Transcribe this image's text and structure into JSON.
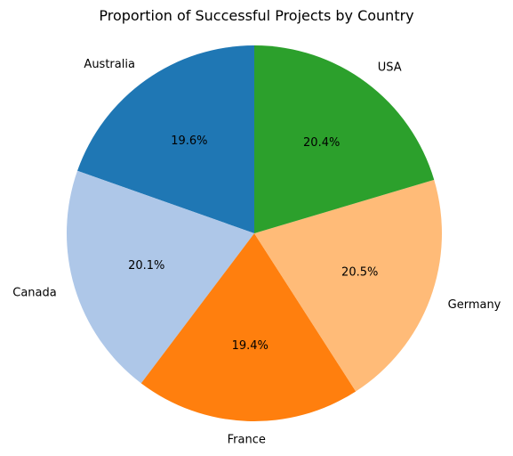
{
  "chart_data": {
    "type": "pie",
    "title": "Proportion of Successful Projects by Country",
    "start_angle_deg": 90,
    "direction": "counterclockwise",
    "slices": [
      {
        "label": "Australia",
        "percent": 19.6,
        "percent_label": "19.6%",
        "color": "#1f77b4"
      },
      {
        "label": "Canada",
        "percent": 20.1,
        "percent_label": "20.1%",
        "color": "#aec7e8"
      },
      {
        "label": "France",
        "percent": 19.4,
        "percent_label": "19.4%",
        "color": "#ff7f0e"
      },
      {
        "label": "Germany",
        "percent": 20.5,
        "percent_label": "20.5%",
        "color": "#ffbb78"
      },
      {
        "label": "USA",
        "percent": 20.4,
        "percent_label": "20.4%",
        "color": "#2ca02c"
      }
    ]
  }
}
